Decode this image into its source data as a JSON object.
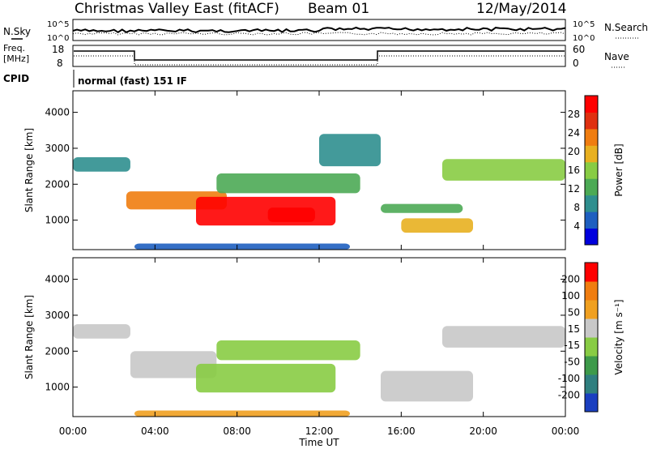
{
  "header": {
    "title": "Christmas Valley East (fitACF)",
    "beam": "Beam 01",
    "date": "12/May/2014"
  },
  "top_panels": {
    "nsky_label": "N.Sky",
    "nsearch_label": "N.Search",
    "noise_ticks_left": [
      "10^5",
      "10^0"
    ],
    "noise_ticks_right": [
      "10^5",
      "10^0"
    ],
    "freq_label": "Freq.",
    "freq_unit": "[MHz]",
    "freq_ticks": [
      "18",
      "8"
    ],
    "nave_label": "Nave",
    "nave_ticks": [
      "60",
      "0"
    ],
    "cpid_label": "CPID",
    "cpid_text": "normal (fast) 151 IF"
  },
  "chart_data": [
    {
      "type": "heatmap",
      "title": "",
      "xlabel": "",
      "ylabel": "Slant Range [km]",
      "x_ticks": [
        "00:00",
        "04:00",
        "08:00",
        "12:00",
        "16:00",
        "20:00",
        "00:00"
      ],
      "y_ticks": [
        "1000",
        "2000",
        "3000",
        "4000"
      ],
      "ylim": [
        180,
        4600
      ],
      "colorbar_label": "Power [dB]",
      "colorbar_ticks": [
        "4",
        "8",
        "12",
        "16",
        "20",
        "24",
        "28"
      ],
      "colorbar_colors": [
        "#0000dd",
        "#1e5fc0",
        "#2f8f8f",
        "#4caa55",
        "#88cc44",
        "#e8b020",
        "#f07d10",
        "#e03010",
        "#ff0000"
      ],
      "echo_bands": [
        {
          "t0": 0.0,
          "t1": 2.8,
          "r0": 2350,
          "r1": 2750,
          "level": 2
        },
        {
          "t0": 2.6,
          "t1": 7.5,
          "r0": 1300,
          "r1": 1800,
          "level": 6
        },
        {
          "t0": 6.0,
          "t1": 12.8,
          "r0": 850,
          "r1": 1650,
          "level": 8
        },
        {
          "t0": 9.5,
          "t1": 11.8,
          "r0": 950,
          "r1": 1350,
          "level": 8
        },
        {
          "t0": 7.0,
          "t1": 14.0,
          "r0": 1750,
          "r1": 2300,
          "level": 3
        },
        {
          "t0": 12.0,
          "t1": 15.0,
          "r0": 2500,
          "r1": 3400,
          "level": 2
        },
        {
          "t0": 15.0,
          "t1": 19.0,
          "r0": 1200,
          "r1": 1450,
          "level": 3
        },
        {
          "t0": 16.0,
          "t1": 19.5,
          "r0": 650,
          "r1": 1050,
          "level": 5
        },
        {
          "t0": 18.0,
          "t1": 24.0,
          "r0": 2100,
          "r1": 2700,
          "level": 4
        },
        {
          "t0": 3.0,
          "t1": 13.5,
          "r0": 180,
          "r1": 350,
          "level": 1
        }
      ]
    },
    {
      "type": "heatmap",
      "title": "",
      "xlabel": "Time UT",
      "ylabel": "Slant Range [km]",
      "x_ticks": [
        "00:00",
        "04:00",
        "08:00",
        "12:00",
        "16:00",
        "20:00",
        "00:00"
      ],
      "y_ticks": [
        "1000",
        "2000",
        "3000",
        "4000"
      ],
      "ylim": [
        180,
        4600
      ],
      "colorbar_label": "Velocity [m s⁻¹]",
      "colorbar_ticks": [
        "200",
        "100",
        "50",
        "15",
        "-15",
        "-50",
        "-100",
        "-200"
      ],
      "colorbar_colors": [
        "#1a3fc0",
        "#2f7f7f",
        "#3d9a4a",
        "#88cc44",
        "#c8c8c8",
        "#f0a020",
        "#f07d10",
        "#ff0000"
      ],
      "echo_bands": [
        {
          "t0": 0.0,
          "t1": 2.8,
          "r0": 2350,
          "r1": 2750,
          "level": 4
        },
        {
          "t0": 2.8,
          "t1": 7.0,
          "r0": 1250,
          "r1": 2000,
          "level": 4
        },
        {
          "t0": 6.0,
          "t1": 12.8,
          "r0": 850,
          "r1": 1650,
          "level": 3
        },
        {
          "t0": 7.0,
          "t1": 14.0,
          "r0": 1750,
          "r1": 2300,
          "level": 3
        },
        {
          "t0": 15.0,
          "t1": 19.5,
          "r0": 600,
          "r1": 1450,
          "level": 4
        },
        {
          "t0": 18.0,
          "t1": 24.0,
          "r0": 2100,
          "r1": 2700,
          "level": 4
        },
        {
          "t0": 3.0,
          "t1": 13.5,
          "r0": 180,
          "r1": 350,
          "level": 5
        }
      ]
    }
  ]
}
